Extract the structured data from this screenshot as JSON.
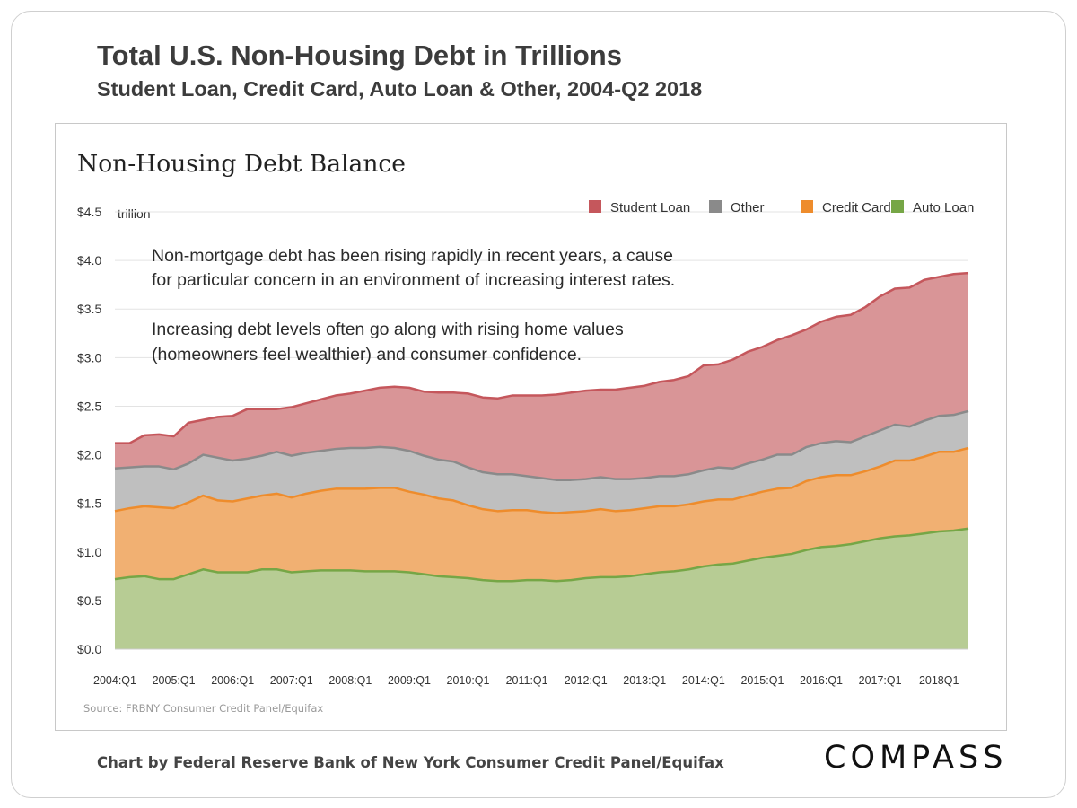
{
  "header": {
    "title": "Total U.S. Non-Housing Debt in Trillions",
    "subtitle": "Student Loan, Credit Card, Auto Loan & Other, 2004-Q2 2018"
  },
  "footer": {
    "credit": "Chart by Federal Reserve Bank of New York Consumer Credit Panel/Equifax",
    "brand": "COMPASS"
  },
  "chart_data": {
    "type": "area",
    "stacked": true,
    "title": "Non-Housing Debt Balance",
    "unit_label": "trillion",
    "source": "Source: FRBNY Consumer Credit Panel/Equifax",
    "annotations": [
      "Non-mortgage debt has been rising rapidly in recent years, a cause",
      "for particular concern in an environment of increasing interest rates.",
      "Increasing debt levels often go along with rising home values",
      "(homeowners feel wealthier) and consumer confidence."
    ],
    "ylim": [
      0,
      4.5
    ],
    "y_ticks": [
      0,
      0.5,
      1.0,
      1.5,
      2.0,
      2.5,
      3.0,
      3.5,
      4.0,
      4.5
    ],
    "y_tick_labels": [
      "$0.0",
      "$0.5",
      "$1.0",
      "$1.5",
      "$2.0",
      "$2.5",
      "$3.0",
      "$3.5",
      "$4.0",
      "$4.5"
    ],
    "x_tick_labels": [
      "2004:Q1",
      "2005:Q1",
      "2006:Q1",
      "2007:Q1",
      "2008:Q1",
      "2009:Q1",
      "2010:Q1",
      "2011:Q1",
      "2012:Q1",
      "2013:Q1",
      "2014:Q1",
      "2015:Q1",
      "2016:Q1",
      "2017:Q1",
      "2018Q1"
    ],
    "x_tick_quarter_index": [
      0,
      4,
      8,
      12,
      16,
      20,
      24,
      28,
      32,
      36,
      40,
      44,
      48,
      52,
      56
    ],
    "legend": [
      {
        "name": "Student Loan",
        "color": "#c5575c"
      },
      {
        "name": "Other",
        "color": "#8a8a8a"
      },
      {
        "name": "Credit Card",
        "color": "#ee8c2c"
      },
      {
        "name": "Auto Loan",
        "color": "#76a646"
      }
    ],
    "series": [
      {
        "name": "Auto Loan",
        "color": "#76a646",
        "fill": "#b7cc94",
        "values": [
          0.72,
          0.74,
          0.75,
          0.72,
          0.72,
          0.77,
          0.82,
          0.79,
          0.79,
          0.79,
          0.82,
          0.82,
          0.79,
          0.8,
          0.81,
          0.81,
          0.81,
          0.8,
          0.8,
          0.8,
          0.79,
          0.77,
          0.75,
          0.74,
          0.73,
          0.71,
          0.7,
          0.7,
          0.71,
          0.71,
          0.7,
          0.71,
          0.73,
          0.74,
          0.74,
          0.75,
          0.77,
          0.79,
          0.8,
          0.82,
          0.85,
          0.87,
          0.88,
          0.91,
          0.94,
          0.96,
          0.98,
          1.02,
          1.05,
          1.06,
          1.08,
          1.11,
          1.14,
          1.16,
          1.17,
          1.19,
          1.21,
          1.22,
          1.24
        ]
      },
      {
        "name": "Credit Card",
        "color": "#ee8c2c",
        "fill": "#f1b072",
        "values": [
          0.7,
          0.71,
          0.72,
          0.74,
          0.73,
          0.74,
          0.76,
          0.74,
          0.73,
          0.76,
          0.76,
          0.78,
          0.77,
          0.8,
          0.82,
          0.84,
          0.84,
          0.85,
          0.86,
          0.86,
          0.83,
          0.82,
          0.8,
          0.79,
          0.75,
          0.73,
          0.72,
          0.73,
          0.72,
          0.7,
          0.7,
          0.7,
          0.69,
          0.7,
          0.68,
          0.68,
          0.68,
          0.68,
          0.67,
          0.67,
          0.67,
          0.67,
          0.66,
          0.67,
          0.68,
          0.69,
          0.68,
          0.71,
          0.72,
          0.73,
          0.71,
          0.72,
          0.74,
          0.78,
          0.77,
          0.79,
          0.82,
          0.81,
          0.83
        ]
      },
      {
        "name": "Other",
        "color": "#8a8a8a",
        "fill": "#bfbfbf",
        "values": [
          0.44,
          0.42,
          0.41,
          0.42,
          0.4,
          0.4,
          0.42,
          0.44,
          0.42,
          0.41,
          0.41,
          0.43,
          0.43,
          0.42,
          0.41,
          0.41,
          0.42,
          0.42,
          0.42,
          0.41,
          0.42,
          0.4,
          0.4,
          0.4,
          0.39,
          0.38,
          0.38,
          0.37,
          0.35,
          0.35,
          0.34,
          0.33,
          0.33,
          0.33,
          0.33,
          0.32,
          0.31,
          0.31,
          0.31,
          0.31,
          0.32,
          0.33,
          0.32,
          0.33,
          0.33,
          0.35,
          0.34,
          0.35,
          0.35,
          0.35,
          0.34,
          0.36,
          0.37,
          0.37,
          0.35,
          0.37,
          0.37,
          0.38,
          0.38
        ]
      },
      {
        "name": "Student Loan",
        "color": "#c5575c",
        "fill": "#d99597",
        "values": [
          0.26,
          0.25,
          0.32,
          0.33,
          0.34,
          0.42,
          0.36,
          0.42,
          0.46,
          0.51,
          0.48,
          0.44,
          0.5,
          0.51,
          0.53,
          0.55,
          0.56,
          0.59,
          0.61,
          0.63,
          0.65,
          0.66,
          0.69,
          0.71,
          0.76,
          0.77,
          0.78,
          0.81,
          0.83,
          0.85,
          0.88,
          0.9,
          0.91,
          0.9,
          0.92,
          0.94,
          0.95,
          0.97,
          0.99,
          1.01,
          1.08,
          1.06,
          1.12,
          1.15,
          1.16,
          1.18,
          1.23,
          1.21,
          1.25,
          1.28,
          1.31,
          1.33,
          1.38,
          1.4,
          1.43,
          1.45,
          1.43,
          1.45,
          1.42
        ]
      }
    ]
  }
}
